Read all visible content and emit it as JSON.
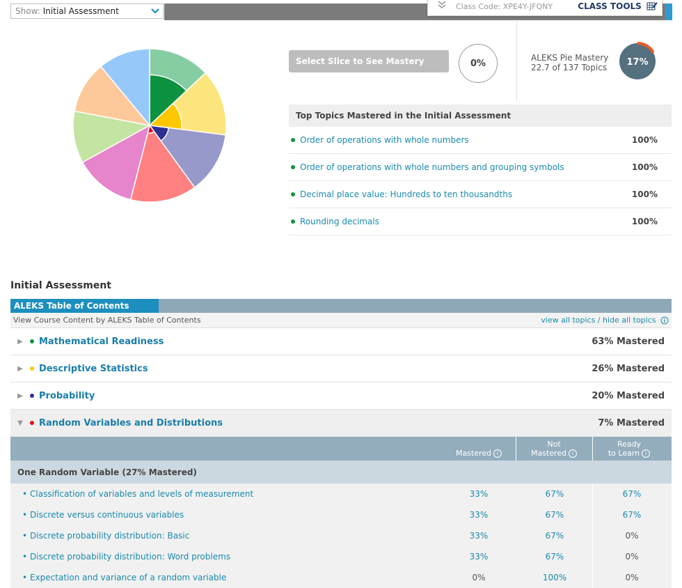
{
  "show_select": {
    "label": "Show:",
    "value": "Initial Assessment"
  },
  "class_bar": {
    "code": "Class Code: XPE4Y-JFQNY",
    "tools": "CLASS TOOLS"
  },
  "chart_data": {
    "type": "pie",
    "slices": [
      {
        "value": 13,
        "colors": {
          "outer": "#86cda3",
          "inner": "#0c9240"
        }
      },
      {
        "value": 14,
        "colors": {
          "outer": "#fde57d",
          "inner": "#ffc700"
        }
      },
      {
        "value": 13,
        "colors": {
          "outer": "#9799cb",
          "inner": "#2e3192"
        }
      },
      {
        "value": 14,
        "colors": {
          "outer": "#ff8080",
          "inner": "#e30b13"
        }
      },
      {
        "value": 13,
        "colors": {
          "outer": "#e684cc",
          "inner": "#e684cc"
        }
      },
      {
        "value": 11,
        "colors": {
          "outer": "#c4e4a1",
          "inner": "#c4e4a1"
        }
      },
      {
        "value": 11,
        "colors": {
          "outer": "#fdc99a",
          "inner": "#fdc99a"
        }
      },
      {
        "value": 11,
        "colors": {
          "outer": "#96c9fa",
          "inner": "#96c9fa"
        }
      }
    ],
    "inner_fraction": [
      0.66,
      0.42,
      0.25,
      0.1,
      0,
      0,
      0,
      0
    ]
  },
  "slice_panel": {
    "button": "Select Slice to See Mastery",
    "value": "0%"
  },
  "pie_mastery": {
    "title": "ALEKS Pie Mastery",
    "topics": "22.7 of 137 Topics",
    "percent": "17%",
    "fraction": 0.17
  },
  "top_topics": {
    "title": "Top Topics Mastered in the Initial Assessment",
    "items": [
      {
        "name": "Order of operations with whole numbers",
        "pct": "100%"
      },
      {
        "name": "Order of operations with whole numbers and grouping symbols",
        "pct": "100%"
      },
      {
        "name": "Decimal place value: Hundreds to ten thousandths",
        "pct": "100%"
      },
      {
        "name": "Rounding decimals",
        "pct": "100%"
      }
    ]
  },
  "assessment": {
    "title": "Initial Assessment",
    "tab": "ALEKS Table of Contents",
    "subtitle": "View Course Content by ALEKS Table of Contents",
    "view_links": "view all topics / hide all topics",
    "categories": [
      {
        "name": "Mathematical Readiness",
        "pct": "63% Mastered",
        "color": "#0c9240"
      },
      {
        "name": "Descriptive Statistics",
        "pct": "26% Mastered",
        "color": "#ffc700"
      },
      {
        "name": "Probability",
        "pct": "20% Mastered",
        "color": "#2e3192"
      },
      {
        "name": "Random Variables and Distributions",
        "pct": "7% Mastered",
        "color": "#e30b13"
      }
    ],
    "columns": {
      "mastered": "Mastered",
      "not_mastered_1": "Not",
      "not_mastered_2": "Mastered",
      "ready_1": "Ready",
      "ready_2": "to Learn"
    },
    "group": "One Random Variable (27% Mastered)",
    "topics": [
      {
        "name": "Classification of variables and levels of measurement",
        "mastered": "33%",
        "not_mastered": "67%",
        "ready": "67%"
      },
      {
        "name": "Discrete versus continuous variables",
        "mastered": "33%",
        "not_mastered": "67%",
        "ready": "67%"
      },
      {
        "name": "Discrete probability distribution: Basic",
        "mastered": "33%",
        "not_mastered": "67%",
        "ready": "0%"
      },
      {
        "name": "Discrete probability distribution: Word problems",
        "mastered": "33%",
        "not_mastered": "67%",
        "ready": "0%"
      },
      {
        "name": "Expectation and variance of a random variable",
        "mastered": "0%",
        "not_mastered": "100%",
        "ready": "0%"
      }
    ]
  }
}
